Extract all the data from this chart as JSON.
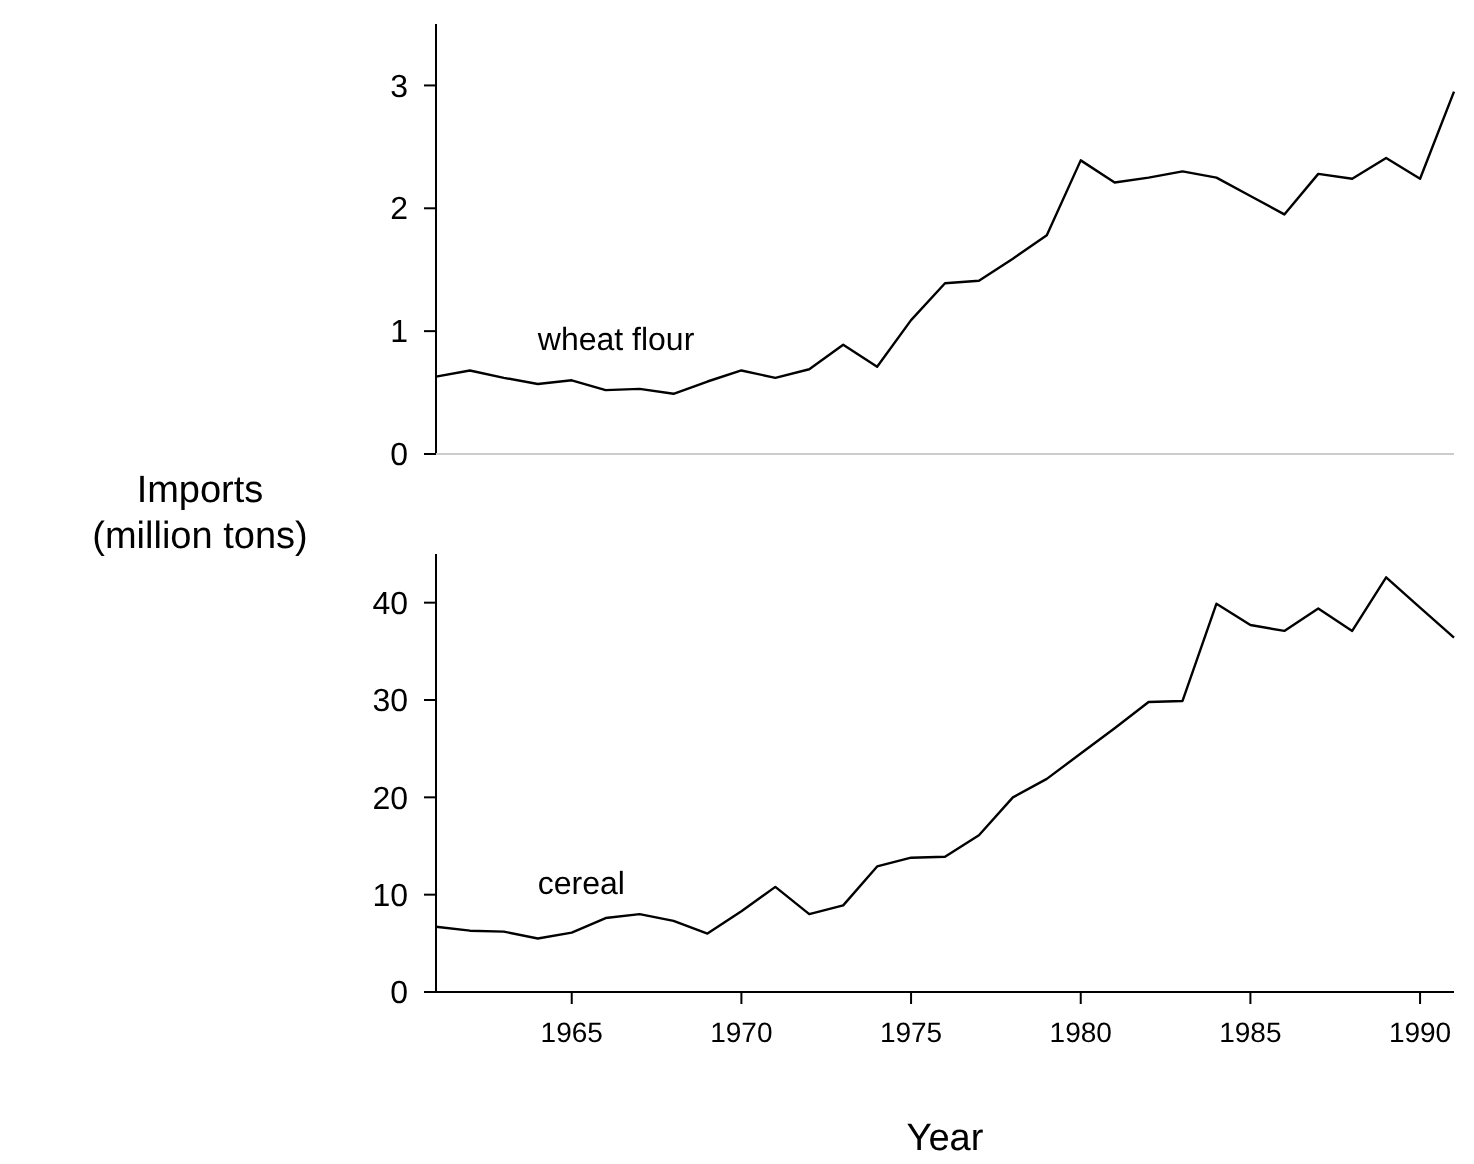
{
  "chart_data": [
    {
      "type": "line",
      "ylabel": "Imports\n(million tons)",
      "x": [
        1961,
        1962,
        1963,
        1964,
        1965,
        1966,
        1967,
        1968,
        1969,
        1970,
        1971,
        1972,
        1973,
        1974,
        1975,
        1976,
        1977,
        1978,
        1979,
        1980,
        1981,
        1982,
        1983,
        1984,
        1985,
        1986,
        1987,
        1988,
        1989,
        1990,
        1991
      ],
      "xlim": [
        1961,
        1991
      ],
      "ylim": [
        0,
        3.5
      ],
      "yticks": [
        0,
        1,
        2,
        3
      ],
      "tick_labels": "y",
      "grid": false,
      "series": [
        {
          "name": "wheat flour",
          "color": "#000000",
          "values": [
            0.63,
            0.68,
            0.62,
            0.57,
            0.6,
            0.52,
            0.53,
            0.49,
            0.59,
            0.68,
            0.62,
            0.69,
            0.89,
            0.71,
            1.09,
            1.39,
            1.41,
            1.59,
            1.78,
            2.39,
            2.21,
            2.25,
            2.3,
            2.25,
            2.1,
            1.95,
            2.28,
            2.24,
            2.41,
            2.24,
            2.95
          ]
        }
      ]
    },
    {
      "type": "line",
      "xlabel": "Year",
      "x": [
        1961,
        1962,
        1963,
        1964,
        1965,
        1966,
        1967,
        1968,
        1969,
        1970,
        1971,
        1972,
        1973,
        1974,
        1975,
        1976,
        1977,
        1978,
        1979,
        1980,
        1981,
        1982,
        1983,
        1984,
        1985,
        1986,
        1987,
        1988,
        1989,
        1990,
        1991
      ],
      "xlim": [
        1961,
        1991
      ],
      "xticks": [
        1965,
        1970,
        1975,
        1980,
        1985,
        1990
      ],
      "ylim": [
        0,
        45
      ],
      "yticks": [
        0,
        10,
        20,
        30,
        40
      ],
      "grid": false,
      "series": [
        {
          "name": "cereal",
          "color": "#000000",
          "values": [
            6.7,
            6.3,
            6.2,
            5.5,
            6.1,
            7.6,
            8.0,
            7.3,
            6.0,
            8.3,
            10.8,
            8.0,
            8.9,
            12.9,
            13.8,
            13.9,
            16.1,
            20.0,
            21.9,
            24.5,
            27.1,
            29.8,
            29.9,
            39.9,
            37.7,
            37.1,
            39.4,
            37.1,
            42.6,
            39.5,
            36.4
          ]
        }
      ]
    }
  ]
}
